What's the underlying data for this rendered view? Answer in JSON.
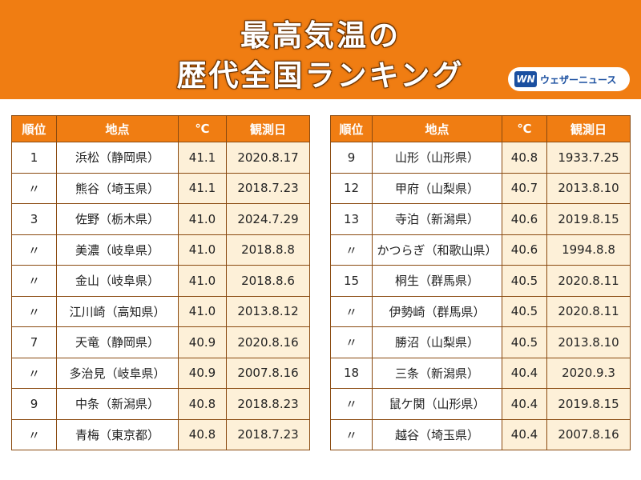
{
  "header": {
    "title_line1": "最高気温の",
    "title_line2": "歴代全国ランキング",
    "logo_mark": "WN",
    "logo_text": "ウェザーニュース",
    "background_color": "#f07d12"
  },
  "table_headers": [
    "順位",
    "地点",
    "℃",
    "観測日"
  ],
  "left_table": [
    {
      "rank": "1",
      "station": "浜松（静岡県）",
      "temp": "41.1",
      "date": "2020.8.17"
    },
    {
      "rank": "〃",
      "station": "熊谷（埼玉県）",
      "temp": "41.1",
      "date": "2018.7.23"
    },
    {
      "rank": "3",
      "station": "佐野（栃木県）",
      "temp": "41.0",
      "date": "2024.7.29"
    },
    {
      "rank": "〃",
      "station": "美濃（岐阜県）",
      "temp": "41.0",
      "date": "2018.8.8"
    },
    {
      "rank": "〃",
      "station": "金山（岐阜県）",
      "temp": "41.0",
      "date": "2018.8.6"
    },
    {
      "rank": "〃",
      "station": "江川崎（高知県）",
      "temp": "41.0",
      "date": "2013.8.12"
    },
    {
      "rank": "7",
      "station": "天竜（静岡県）",
      "temp": "40.9",
      "date": "2020.8.16"
    },
    {
      "rank": "〃",
      "station": "多治見（岐阜県）",
      "temp": "40.9",
      "date": "2007.8.16"
    },
    {
      "rank": "9",
      "station": "中条（新潟県）",
      "temp": "40.8",
      "date": "2018.8.23"
    },
    {
      "rank": "〃",
      "station": "青梅（東京都）",
      "temp": "40.8",
      "date": "2018.7.23"
    }
  ],
  "right_table": [
    {
      "rank": "9",
      "station": "山形（山形県）",
      "temp": "40.8",
      "date": "1933.7.25"
    },
    {
      "rank": "12",
      "station": "甲府（山梨県）",
      "temp": "40.7",
      "date": "2013.8.10"
    },
    {
      "rank": "13",
      "station": "寺泊（新潟県）",
      "temp": "40.6",
      "date": "2019.8.15"
    },
    {
      "rank": "〃",
      "station": "かつらぎ（和歌山県）",
      "temp": "40.6",
      "date": "1994.8.8"
    },
    {
      "rank": "15",
      "station": "桐生（群馬県）",
      "temp": "40.5",
      "date": "2020.8.11"
    },
    {
      "rank": "〃",
      "station": "伊勢崎（群馬県）",
      "temp": "40.5",
      "date": "2020.8.11"
    },
    {
      "rank": "〃",
      "station": "勝沼（山梨県）",
      "temp": "40.5",
      "date": "2013.8.10"
    },
    {
      "rank": "18",
      "station": "三条（新潟県）",
      "temp": "40.4",
      "date": "2020.9.3"
    },
    {
      "rank": "〃",
      "station": "鼠ケ関（山形県）",
      "temp": "40.4",
      "date": "2019.8.15"
    },
    {
      "rank": "〃",
      "station": "越谷（埼玉県）",
      "temp": "40.4",
      "date": "2007.8.16"
    }
  ]
}
